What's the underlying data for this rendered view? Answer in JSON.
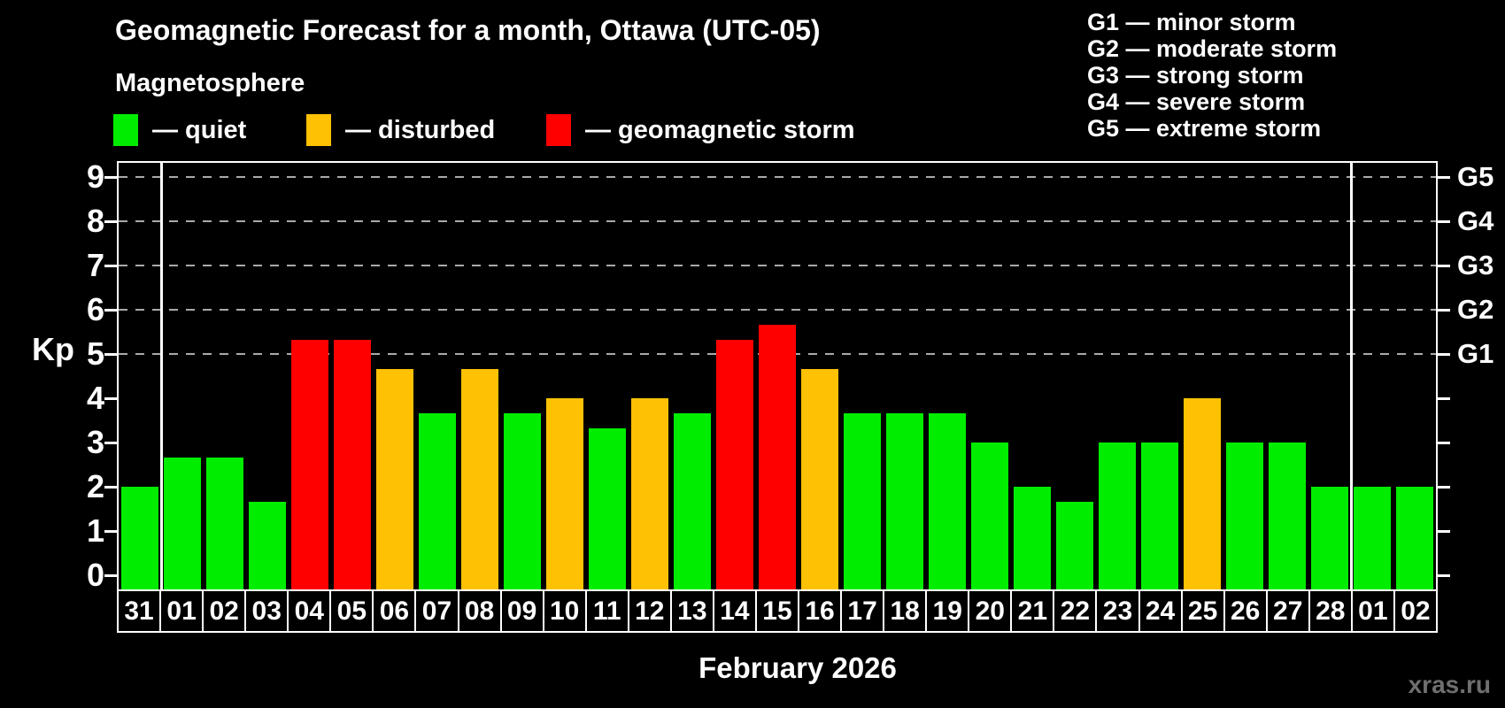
{
  "header": {
    "title": "Geomagnetic Forecast for a month, Ottawa (UTC-05)",
    "subtitle": "Magnetosphere"
  },
  "legend": {
    "quiet_label": "— quiet",
    "disturbed_label": "— disturbed",
    "storm_label": "— geomagnetic storm"
  },
  "g_scale_legend": [
    "G1 — minor storm",
    "G2 — moderate storm",
    "G3 — strong storm",
    "G4 — severe storm",
    "G5 — extreme storm"
  ],
  "colors": {
    "quiet": "#00ed00",
    "disturbed": "#ffc103",
    "storm": "#fe0000",
    "background": "#000000",
    "text": "#ffffff",
    "gridline": "#a9a9a9",
    "watermark": "#6f6f6f"
  },
  "chart_data": {
    "type": "bar",
    "title": "Geomagnetic Forecast for a month, Ottawa (UTC-05)",
    "ylabel": "Kp",
    "xlabel": "February 2026",
    "ylim": [
      0,
      9
    ],
    "yticks": [
      0,
      1,
      2,
      3,
      4,
      5,
      6,
      7,
      8,
      9
    ],
    "dashed_gridlines_at_kp": [
      5,
      6,
      7,
      8,
      9
    ],
    "right_axis": [
      {
        "label": "G1",
        "kp": 5
      },
      {
        "label": "G2",
        "kp": 6
      },
      {
        "label": "G3",
        "kp": 7
      },
      {
        "label": "G4",
        "kp": 8
      },
      {
        "label": "G5",
        "kp": 9
      }
    ],
    "legend_position": "top-left",
    "categories": [
      "31",
      "01",
      "02",
      "03",
      "04",
      "05",
      "06",
      "07",
      "08",
      "09",
      "10",
      "11",
      "12",
      "13",
      "14",
      "15",
      "16",
      "17",
      "18",
      "19",
      "20",
      "21",
      "22",
      "23",
      "24",
      "25",
      "26",
      "27",
      "28",
      "01",
      "02"
    ],
    "values": [
      2.0,
      2.67,
      2.67,
      1.67,
      5.33,
      5.33,
      4.67,
      3.67,
      4.67,
      3.67,
      4.0,
      3.33,
      4.0,
      3.67,
      5.33,
      5.67,
      4.67,
      3.67,
      3.67,
      3.67,
      3.0,
      2.0,
      1.67,
      3.0,
      3.0,
      4.0,
      3.0,
      3.0,
      2.0,
      2.0,
      2.0
    ],
    "statuses": [
      "quiet",
      "quiet",
      "quiet",
      "quiet",
      "storm",
      "storm",
      "disturbed",
      "quiet",
      "disturbed",
      "quiet",
      "disturbed",
      "quiet",
      "disturbed",
      "quiet",
      "storm",
      "storm",
      "disturbed",
      "quiet",
      "quiet",
      "quiet",
      "quiet",
      "quiet",
      "quiet",
      "quiet",
      "quiet",
      "disturbed",
      "quiet",
      "quiet",
      "quiet",
      "quiet",
      "quiet"
    ],
    "day_separators_after_index": [
      0,
      28
    ]
  },
  "xaxis": {
    "month_label": "February 2026"
  },
  "watermark": "xras.ru"
}
